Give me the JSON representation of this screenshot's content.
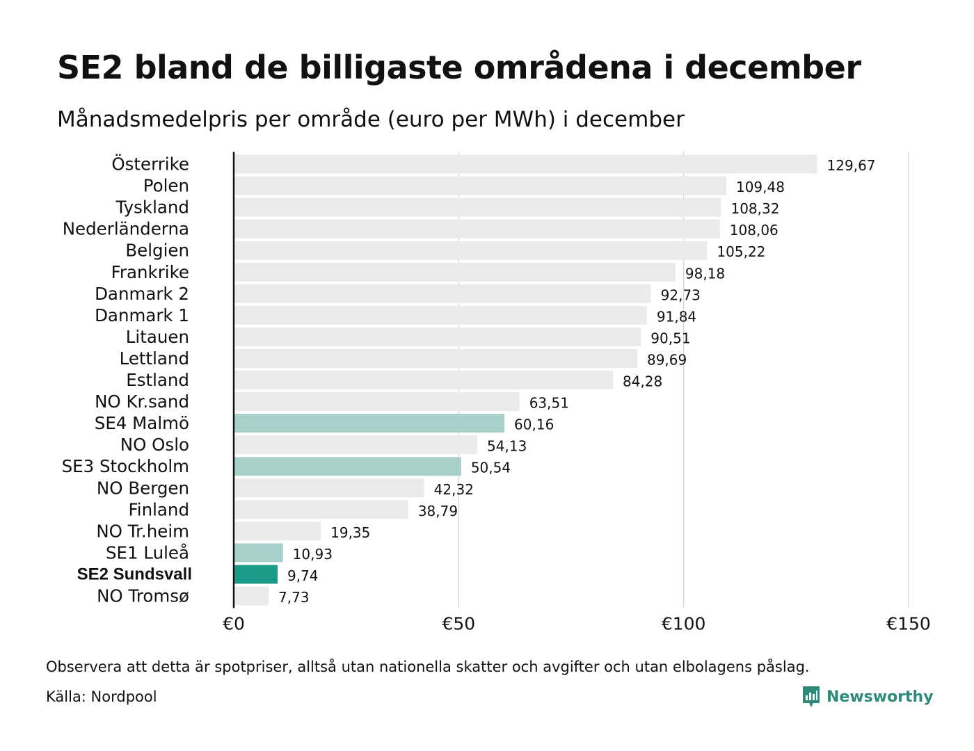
{
  "header": {
    "title": "SE2 bland de billigaste områdena i december",
    "subtitle": "Månadsmedelpris per område (euro per MWh) i december"
  },
  "colors": {
    "default_bar": "#ebebeb",
    "se_bar": "#a8d0c9",
    "highlight_bar": "#1a9a87",
    "axis_line": "#111111",
    "grid_line": "#cccccc",
    "brand": "#2e8a7a"
  },
  "chart_data": {
    "type": "bar",
    "orientation": "horizontal",
    "title": "SE2 bland de billigaste områdena i december",
    "subtitle": "Månadsmedelpris per område (euro per MWh) i december",
    "categories": [
      "Österrike",
      "Polen",
      "Tyskland",
      "Nederländerna",
      "Belgien",
      "Frankrike",
      "Danmark  2",
      "Danmark  1",
      "Litauen",
      "Lettland",
      "Estland",
      "NO Kr.sand",
      "SE4  Malmö",
      "NO Oslo",
      "SE3  Stockholm",
      "NO Bergen",
      "Finland",
      "NO Tr.heim",
      "SE1  Luleå",
      "SE2 Sundsvall",
      "NO Tromsø"
    ],
    "values": [
      129.67,
      109.48,
      108.32,
      108.06,
      105.22,
      98.18,
      92.73,
      91.84,
      90.51,
      89.69,
      84.28,
      63.51,
      60.16,
      54.13,
      50.54,
      42.32,
      38.79,
      19.35,
      10.93,
      9.74,
      7.73
    ],
    "value_labels": [
      "129,67",
      "109,48",
      "108,32",
      "108,06",
      "105,22",
      "98,18",
      "92,73",
      "91,84",
      "90,51",
      "89,69",
      "84,28",
      "63,51",
      "60,16",
      "54,13",
      "50,54",
      "42,32",
      "38,79",
      "19,35",
      "10,93",
      "9,74",
      "7,73"
    ],
    "bar_groups": [
      "other",
      "other",
      "other",
      "other",
      "other",
      "other",
      "other",
      "other",
      "other",
      "other",
      "other",
      "other",
      "se",
      "other",
      "se",
      "other",
      "other",
      "other",
      "se",
      "highlight",
      "other"
    ],
    "highlight_category": "SE2 Sundsvall",
    "xlim": [
      0,
      150
    ],
    "xticks": [
      0,
      50,
      100,
      150
    ],
    "xtick_labels": [
      "€0",
      "€50",
      "€100",
      "€150"
    ],
    "grid": true,
    "legend": "none"
  },
  "footer": {
    "note": "Observera att detta är spotpriser, alltså utan nationella skatter och avgifter och utan elbolagens påslag.",
    "source": "Källa: Nordpool",
    "brand": "Newsworthy",
    "brand_icon": "newsworthy-logo-icon"
  }
}
